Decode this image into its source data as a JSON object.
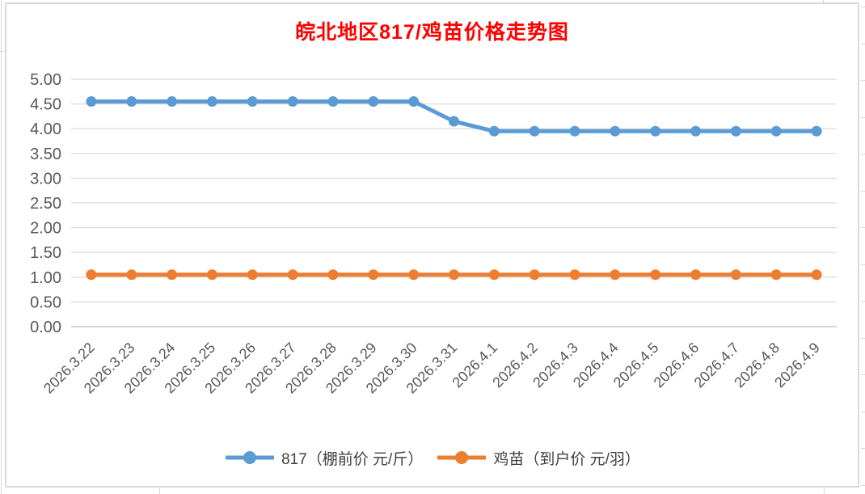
{
  "chart_data": {
    "type": "line",
    "title": "皖北地区817/鸡苗价格走势图",
    "categories": [
      "2026.3.22",
      "2026.3.23",
      "2026.3.24",
      "2026.3.25",
      "2026.3.26",
      "2026.3.27",
      "2026.3.28",
      "2026.3.29",
      "2026.3.30",
      "2026.3.31",
      "2026.4.1",
      "2026.4.2",
      "2026.4.3",
      "2026.4.4",
      "2026.4.5",
      "2026.4.6",
      "2026.4.7",
      "2026.4.8",
      "2026.4.9"
    ],
    "series": [
      {
        "name": "817（棚前价 元/斤）",
        "color": "#5B9BD5",
        "values": [
          4.55,
          4.55,
          4.55,
          4.55,
          4.55,
          4.55,
          4.55,
          4.55,
          4.55,
          4.15,
          3.95,
          3.95,
          3.95,
          3.95,
          3.95,
          3.95,
          3.95,
          3.95,
          3.95
        ]
      },
      {
        "name": "鸡苗（到户价 元/羽）",
        "color": "#ED7D31",
        "values": [
          1.05,
          1.05,
          1.05,
          1.05,
          1.05,
          1.05,
          1.05,
          1.05,
          1.05,
          1.05,
          1.05,
          1.05,
          1.05,
          1.05,
          1.05,
          1.05,
          1.05,
          1.05,
          1.05
        ]
      }
    ],
    "xlabel": "",
    "ylabel": "",
    "ylim": [
      0,
      5
    ],
    "ytick_step": 0.5,
    "ytick_labels": [
      "0.00",
      "0.50",
      "1.00",
      "1.50",
      "2.00",
      "2.50",
      "3.00",
      "3.50",
      "4.00",
      "4.50",
      "5.00"
    ],
    "grid": true,
    "legend_position": "bottom",
    "marker": "circle",
    "x_label_rotation_deg": 45
  },
  "colors": {
    "title_red": "#FF0000",
    "series_blue": "#5B9BD5",
    "series_orange": "#ED7D31",
    "axis_text": "#595959",
    "gridline": "#D9D9D9",
    "axis_line": "#C9C9C9",
    "chart_border": "#D9D9D9"
  }
}
